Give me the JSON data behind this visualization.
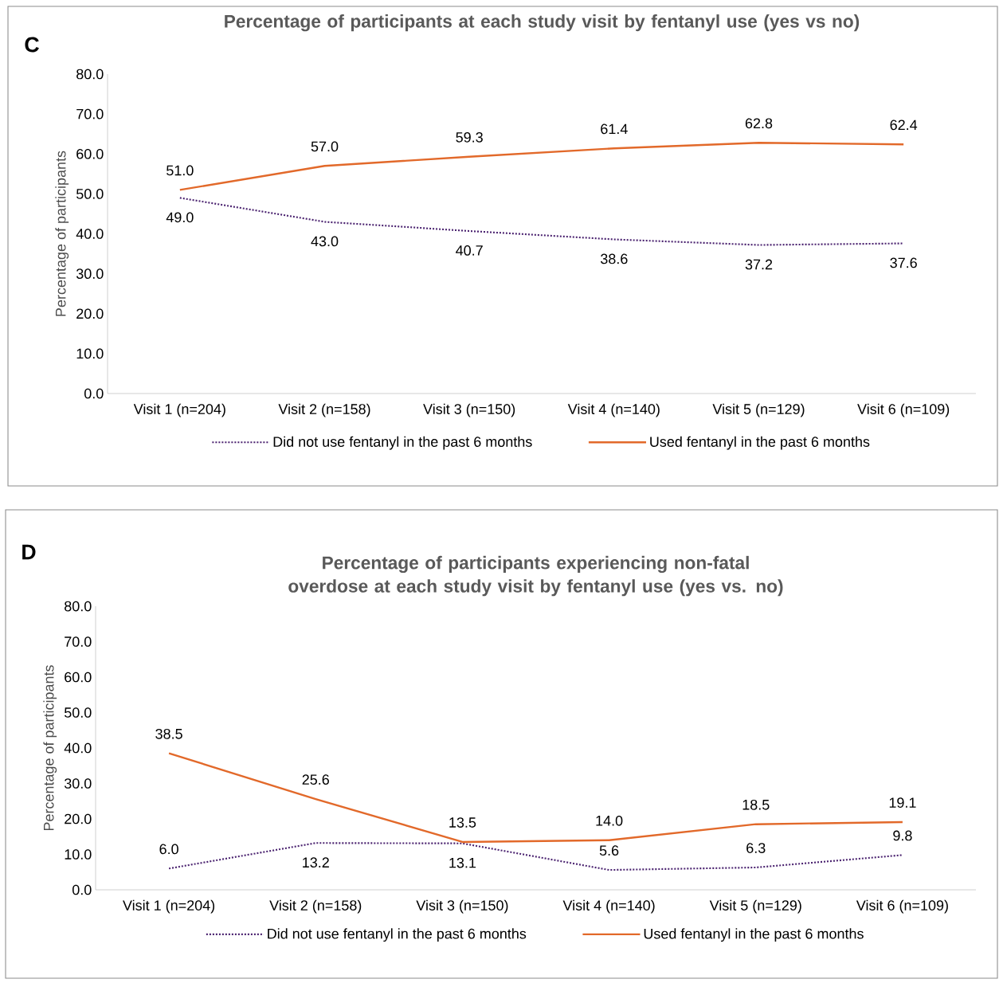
{
  "chart_data": [
    {
      "type": "line",
      "title": "Percentage of participants at each study visit by fentanyl use (yes vs no)",
      "ylabel": "Percentage of participants",
      "annotations": [
        "C"
      ],
      "categories": [
        "Visit 1 (n=204)",
        "Visit 2 (n=158)",
        "Visit 3 (n=150)",
        "Visit 4 (n=140)",
        "Visit 5 (n=129)",
        "Visit 6 (n=109)"
      ],
      "series": [
        {
          "name": "Did not use fentanyl in the past 6 months",
          "color": "#4b2370",
          "line_style": "dotted",
          "values": [
            49.0,
            43.0,
            40.7,
            38.6,
            37.2,
            37.6
          ],
          "value_labels": [
            "49.0",
            "43.0",
            "40.7",
            "38.6",
            "37.2",
            "37.6"
          ]
        },
        {
          "name": "Used fentanyl in the past 6 months",
          "color": "#e2692a",
          "line_style": "solid",
          "values": [
            51.0,
            57.0,
            59.3,
            61.4,
            62.8,
            62.4
          ],
          "value_labels": [
            "51.0",
            "57.0",
            "59.3",
            "61.4",
            "62.8",
            "62.4"
          ]
        }
      ],
      "ylim": [
        0,
        80
      ],
      "yticks": [
        {
          "value": 0,
          "label": "0.0"
        },
        {
          "value": 10,
          "label": "10.0"
        },
        {
          "value": 20,
          "label": "20.0"
        },
        {
          "value": 30,
          "label": "30.0"
        },
        {
          "value": 40,
          "label": "40.0"
        },
        {
          "value": 50,
          "label": "50.0"
        },
        {
          "value": 60,
          "label": "60.0"
        },
        {
          "value": 70,
          "label": "70.0"
        },
        {
          "value": 80,
          "label": "80.0"
        }
      ],
      "legend": "bottom",
      "marker": "none"
    },
    {
      "type": "line",
      "title": "Percentage of participants experiencing non-fatal overdose at each study visit by fentanyl use (yes vs. no)",
      "ylabel": "Percentage of participants",
      "annotations": [
        "D"
      ],
      "categories": [
        "Visit 1 (n=204)",
        "Visit 2 (n=158)",
        "Visit 3 (n=150)",
        "Visit 4 (n=140)",
        "Visit 5 (n=129)",
        "Visit 6 (n=109)"
      ],
      "series": [
        {
          "name": "Did not use fentanyl in the past 6 months",
          "color": "#4b2370",
          "line_style": "dotted",
          "values": [
            6.0,
            13.2,
            13.1,
            5.6,
            6.3,
            9.8
          ],
          "value_labels": [
            "6.0",
            "13.2",
            "13.1",
            "5.6",
            "6.3",
            "9.8"
          ]
        },
        {
          "name": "Used fentanyl in the past 6 months",
          "color": "#e2692a",
          "line_style": "solid",
          "values": [
            38.5,
            25.6,
            13.5,
            14.0,
            18.5,
            19.1
          ],
          "value_labels": [
            "38.5",
            "25.6",
            "13.5",
            "14.0",
            "18.5",
            "19.1"
          ]
        }
      ],
      "ylim": [
        0,
        80
      ],
      "yticks": [
        {
          "value": 0,
          "label": "0.0"
        },
        {
          "value": 10,
          "label": "10.0"
        },
        {
          "value": 20,
          "label": "20.0"
        },
        {
          "value": 30,
          "label": "30.0"
        },
        {
          "value": 40,
          "label": "40.0"
        },
        {
          "value": 50,
          "label": "50.0"
        },
        {
          "value": 60,
          "label": "60.0"
        },
        {
          "value": 70,
          "label": "70.0"
        },
        {
          "value": 80,
          "label": "80.0"
        }
      ],
      "legend": "bottom",
      "marker": "none"
    }
  ]
}
